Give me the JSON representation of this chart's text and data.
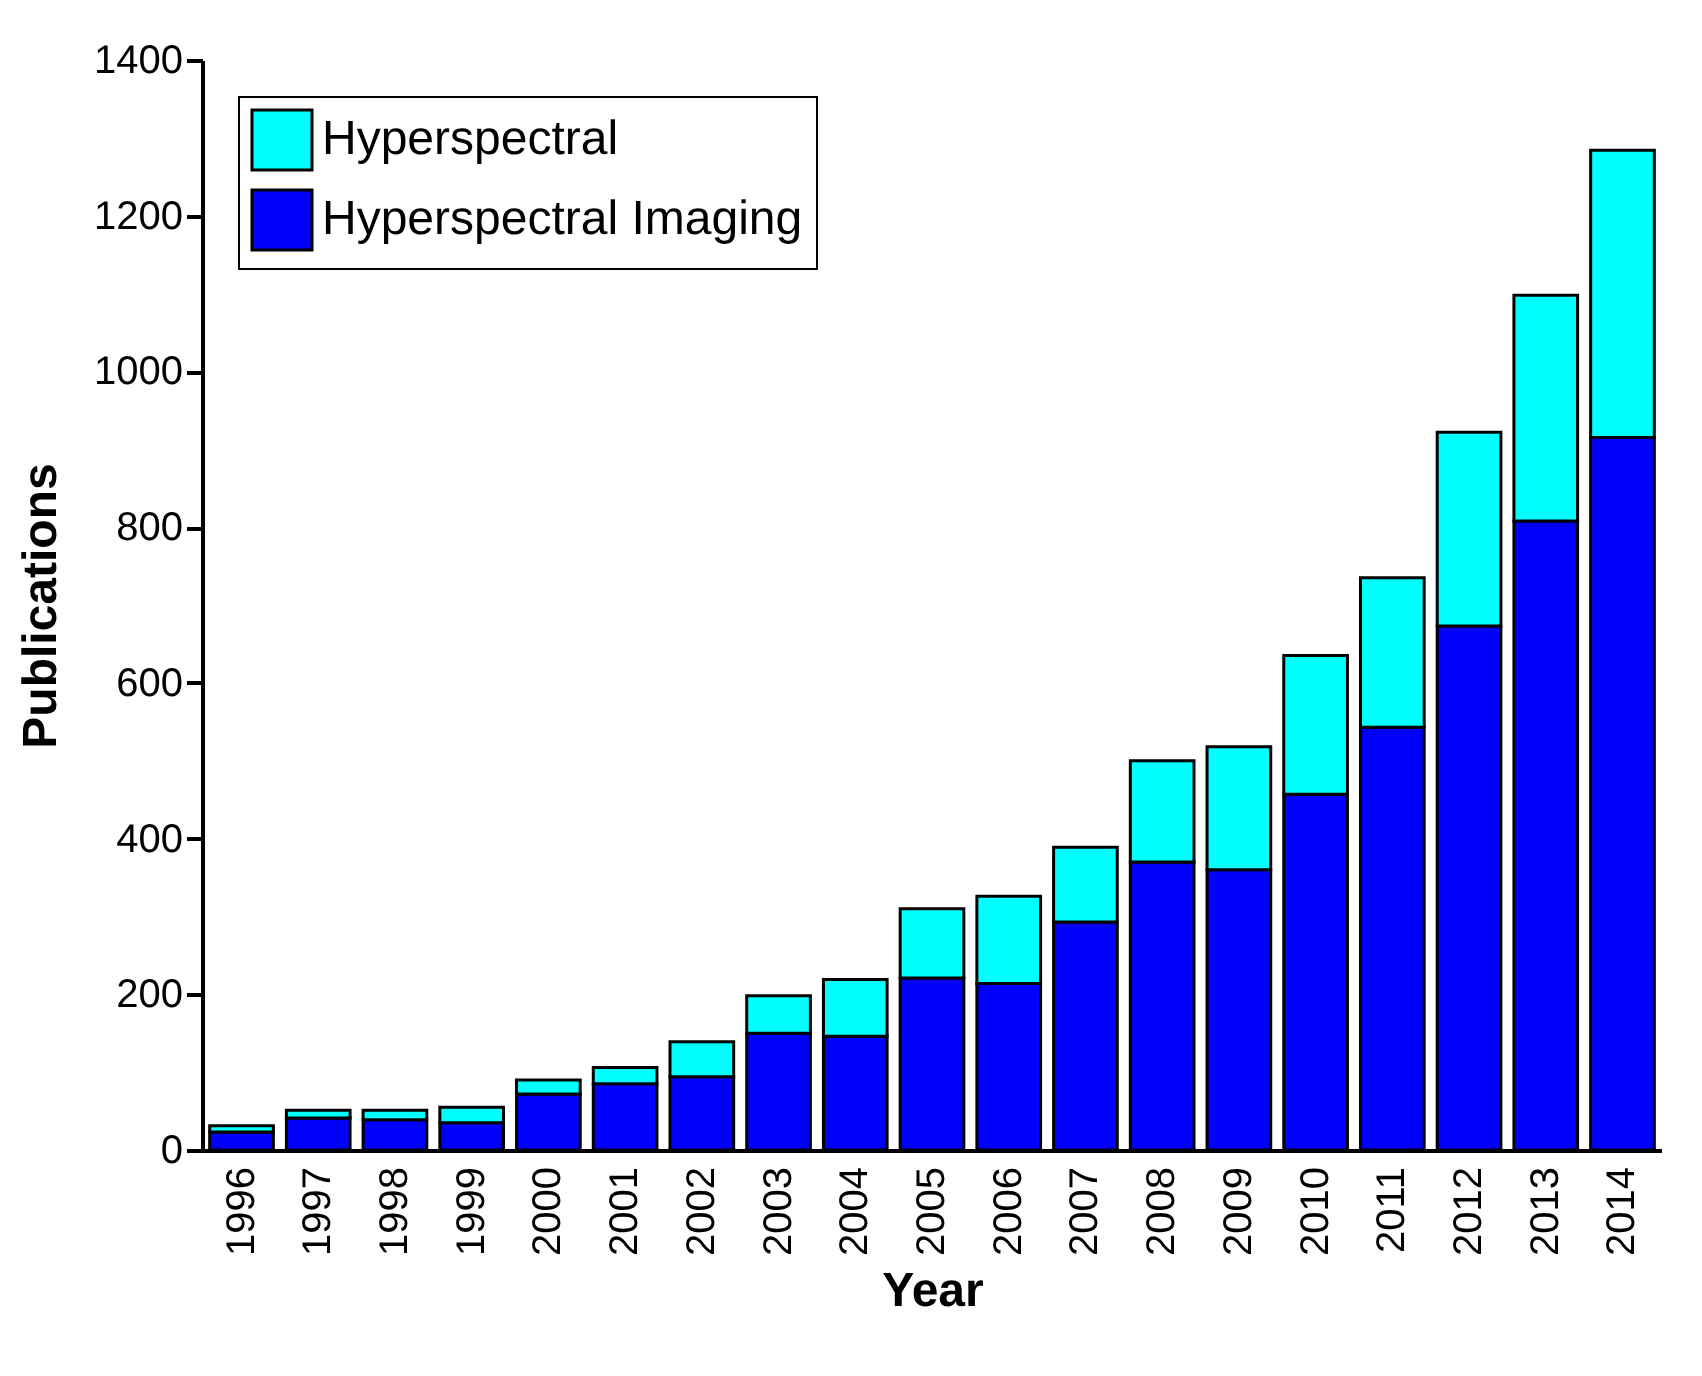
{
  "chart_data": {
    "type": "bar",
    "stacked": true,
    "xlabel": "Year",
    "ylabel": "Publications",
    "categories": [
      "1996",
      "1997",
      "1998",
      "1999",
      "2000",
      "2001",
      "2002",
      "2003",
      "2004",
      "2005",
      "2006",
      "2007",
      "2008",
      "2009",
      "2010",
      "2011",
      "2012",
      "2013",
      "2014"
    ],
    "series": [
      {
        "name": "Hyperspectral Imaging",
        "color": "#0000ff",
        "values": [
          23,
          41,
          39,
          35,
          72,
          85,
          94,
          150,
          146,
          221,
          214,
          293,
          370,
          360,
          457,
          543,
          673,
          808,
          915
        ]
      },
      {
        "name": "Hyperspectral",
        "color": "#00ffff",
        "values": [
          8,
          10,
          12,
          20,
          18,
          21,
          45,
          48,
          73,
          89,
          112,
          96,
          130,
          158,
          178,
          192,
          249,
          290,
          369
        ]
      }
    ],
    "ylim": [
      0,
      1400
    ],
    "yticks": [
      0,
      200,
      400,
      600,
      800,
      1000,
      1200,
      1400
    ],
    "legend": "top left",
    "grid": false
  }
}
